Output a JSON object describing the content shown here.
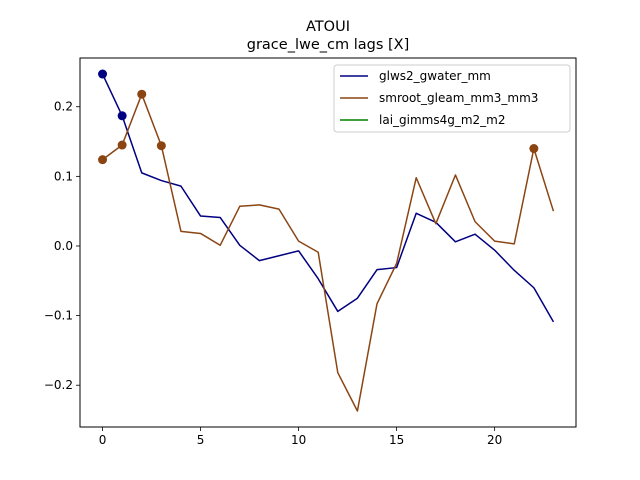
{
  "chart_data": {
    "type": "line",
    "title": "ATOUI",
    "subtitle": "grace_lwe_cm lags [X]",
    "xlabel": "",
    "ylabel": "",
    "xlim": [
      -1.15,
      24.15
    ],
    "ylim": [
      -0.26,
      0.27
    ],
    "xticks": [
      0,
      5,
      10,
      15,
      20
    ],
    "xtick_labels": [
      "0",
      "5",
      "10",
      "15",
      "20"
    ],
    "yticks": [
      -0.2,
      -0.1,
      0.0,
      0.1,
      0.2
    ],
    "ytick_labels": [
      "−0.2",
      "−0.1",
      "0.0",
      "0.1",
      "0.2"
    ],
    "grid": false,
    "legend_position": "top-right",
    "series": [
      {
        "name": "glws2_gwater_mm",
        "color": "#000080",
        "x": [
          0,
          1,
          2,
          3,
          4,
          5,
          6,
          7,
          8,
          9,
          10,
          11,
          12,
          13,
          14,
          15,
          16,
          17,
          18,
          19,
          20,
          21,
          22,
          23
        ],
        "values": [
          0.247,
          0.187,
          0.105,
          0.094,
          0.086,
          0.043,
          0.041,
          0.001,
          -0.021,
          -0.014,
          -0.007,
          -0.047,
          -0.094,
          -0.075,
          -0.034,
          -0.031,
          0.047,
          0.034,
          0.006,
          0.017,
          -0.006,
          -0.035,
          -0.06,
          -0.109
        ],
        "markers_x": [
          0,
          1
        ],
        "markers_values": [
          0.247,
          0.187
        ]
      },
      {
        "name": "smroot_gleam_mm3_mm3",
        "color": "#8B4513",
        "x": [
          0,
          1,
          2,
          3,
          4,
          5,
          6,
          7,
          8,
          9,
          10,
          11,
          12,
          13,
          14,
          15,
          16,
          17,
          18,
          19,
          20,
          21,
          22,
          23
        ],
        "values": [
          0.124,
          0.145,
          0.218,
          0.144,
          0.021,
          0.018,
          0.001,
          0.057,
          0.059,
          0.053,
          0.007,
          -0.009,
          -0.182,
          -0.237,
          -0.083,
          -0.025,
          0.098,
          0.032,
          0.102,
          0.035,
          0.007,
          0.003,
          0.14,
          0.05
        ],
        "markers_x": [
          0,
          1,
          2,
          3,
          22
        ],
        "markers_values": [
          0.124,
          0.145,
          0.218,
          0.144,
          0.14
        ]
      },
      {
        "name": "lai_gimms4g_m2_m2",
        "color": "#008000",
        "x": [],
        "values": [],
        "markers_x": [],
        "markers_values": []
      }
    ]
  }
}
